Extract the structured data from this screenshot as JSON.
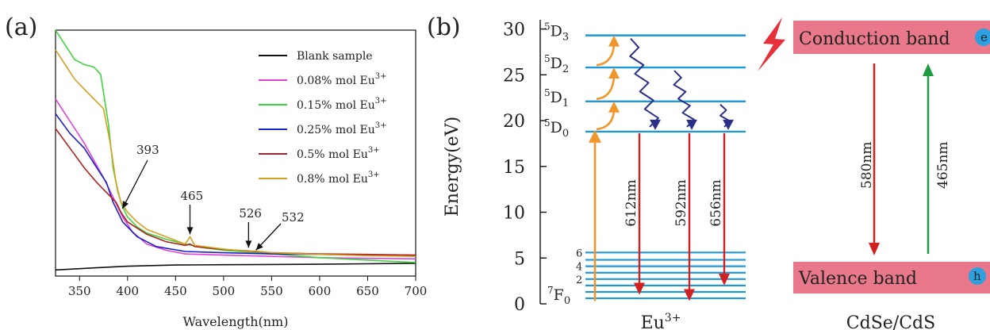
{
  "chart_data": [
    {
      "type": "line",
      "panel_label": "(a)",
      "xlabel": "Wavelength(nm)",
      "ylabel": "",
      "xlim": [
        325,
        700
      ],
      "ylim": [
        0,
        1
      ],
      "grid": false,
      "legend_position": "top-right",
      "x_ticks": [
        350,
        400,
        450,
        500,
        550,
        600,
        650,
        700
      ],
      "series": [
        {
          "name": "Blank sample",
          "color": "#111111",
          "points": [
            [
              325,
              0.025
            ],
            [
              350,
              0.03
            ],
            [
              375,
              0.035
            ],
            [
              400,
              0.04
            ],
            [
              450,
              0.045
            ],
            [
              500,
              0.046
            ],
            [
              550,
              0.047
            ],
            [
              600,
              0.048
            ],
            [
              650,
              0.05
            ],
            [
              700,
              0.052
            ]
          ]
        },
        {
          "name": "0.08% mol Eu",
          "color": "#e040e0",
          "points": [
            [
              325,
              0.72
            ],
            [
              335,
              0.66
            ],
            [
              345,
              0.6
            ],
            [
              355,
              0.54
            ],
            [
              365,
              0.47
            ],
            [
              375,
              0.4
            ],
            [
              385,
              0.32
            ],
            [
              395,
              0.24
            ],
            [
              405,
              0.18
            ],
            [
              420,
              0.13
            ],
            [
              440,
              0.105
            ],
            [
              460,
              0.09
            ],
            [
              500,
              0.085
            ],
            [
              550,
              0.08
            ],
            [
              600,
              0.075
            ],
            [
              650,
              0.072
            ],
            [
              700,
              0.07
            ]
          ]
        },
        {
          "name": "0.15% mol Eu",
          "color": "#3ed43e",
          "points": [
            [
              325,
              1.0
            ],
            [
              335,
              0.94
            ],
            [
              345,
              0.88
            ],
            [
              355,
              0.86
            ],
            [
              365,
              0.85
            ],
            [
              372,
              0.82
            ],
            [
              380,
              0.62
            ],
            [
              385,
              0.44
            ],
            [
              390,
              0.34
            ],
            [
              395,
              0.28
            ],
            [
              400,
              0.24
            ],
            [
              410,
              0.2
            ],
            [
              420,
              0.175
            ],
            [
              440,
              0.15
            ],
            [
              460,
              0.13
            ],
            [
              480,
              0.115
            ],
            [
              500,
              0.105
            ],
            [
              550,
              0.09
            ],
            [
              600,
              0.075
            ],
            [
              650,
              0.065
            ],
            [
              700,
              0.055
            ]
          ]
        },
        {
          "name": "0.25% mol Eu",
          "color": "#1a22c0",
          "points": [
            [
              325,
              0.66
            ],
            [
              340,
              0.58
            ],
            [
              355,
              0.52
            ],
            [
              368,
              0.44
            ],
            [
              378,
              0.38
            ],
            [
              385,
              0.3
            ],
            [
              395,
              0.22
            ],
            [
              410,
              0.16
            ],
            [
              430,
              0.12
            ],
            [
              460,
              0.1
            ],
            [
              500,
              0.095
            ],
            [
              550,
              0.09
            ],
            [
              600,
              0.088
            ],
            [
              650,
              0.085
            ],
            [
              700,
              0.082
            ]
          ]
        },
        {
          "name": "0.5% mol Eu",
          "color": "#b02020",
          "points": [
            [
              325,
              0.6
            ],
            [
              340,
              0.52
            ],
            [
              355,
              0.44
            ],
            [
              368,
              0.38
            ],
            [
              378,
              0.34
            ],
            [
              388,
              0.3
            ],
            [
              393,
              0.26
            ],
            [
              400,
              0.22
            ],
            [
              420,
              0.17
            ],
            [
              440,
              0.14
            ],
            [
              460,
              0.125
            ],
            [
              465,
              0.13
            ],
            [
              470,
              0.12
            ],
            [
              500,
              0.108
            ],
            [
              526,
              0.102
            ],
            [
              550,
              0.095
            ],
            [
              600,
              0.09
            ],
            [
              650,
              0.088
            ],
            [
              700,
              0.085
            ]
          ]
        },
        {
          "name": "0.8% mol Eu",
          "color": "#d4a020",
          "points": [
            [
              325,
              0.92
            ],
            [
              335,
              0.86
            ],
            [
              345,
              0.8
            ],
            [
              355,
              0.76
            ],
            [
              365,
              0.72
            ],
            [
              375,
              0.68
            ],
            [
              382,
              0.54
            ],
            [
              388,
              0.38
            ],
            [
              393,
              0.3
            ],
            [
              400,
              0.26
            ],
            [
              410,
              0.22
            ],
            [
              420,
              0.19
            ],
            [
              440,
              0.16
            ],
            [
              460,
              0.13
            ],
            [
              465,
              0.16
            ],
            [
              470,
              0.125
            ],
            [
              500,
              0.11
            ],
            [
              526,
              0.1
            ],
            [
              532,
              0.102
            ],
            [
              550,
              0.095
            ],
            [
              600,
              0.088
            ],
            [
              650,
              0.083
            ],
            [
              700,
              0.08
            ]
          ]
        }
      ],
      "annotations": [
        {
          "text": "393",
          "x": 393,
          "y": 0.3
        },
        {
          "text": "465",
          "x": 465,
          "y": 0.16
        },
        {
          "text": "526",
          "x": 526,
          "y": 0.102
        },
        {
          "text": "532",
          "x": 532,
          "y": 0.102
        }
      ]
    },
    {
      "type": "diagram",
      "panel_label": "(b)",
      "ylabel": "Energy(eV)",
      "ylim": [
        0,
        31
      ],
      "y_ticks": [
        0,
        5,
        10,
        15,
        20,
        25,
        30
      ],
      "eu_levels": [
        {
          "label": "5D3",
          "main": "5",
          "term": "D",
          "sub": "3",
          "energy": 29.3
        },
        {
          "label": "5D2",
          "main": "5",
          "term": "D",
          "sub": "2",
          "energy": 25.8
        },
        {
          "label": "5D1",
          "main": "5",
          "term": "D",
          "sub": "1",
          "energy": 22.1
        },
        {
          "label": "5D0",
          "main": "5",
          "term": "D",
          "sub": "0",
          "energy": 18.8
        }
      ],
      "ground_levels": [
        5.6,
        4.8,
        4.1,
        3.4,
        2.7,
        2.0,
        1.3,
        0.6
      ],
      "ground_labels": {
        "six": "6",
        "four": "4",
        "two": "2",
        "term_main": "7",
        "term_letter": "F",
        "term_sub": "0"
      },
      "emissions": [
        {
          "wavelength": "612nm",
          "color": "#d02020"
        },
        {
          "wavelength": "592nm",
          "color": "#d02020"
        },
        {
          "wavelength": "656nm",
          "color": "#d02020"
        }
      ],
      "host_transitions": [
        {
          "wavelength": "580nm",
          "color": "#d02020",
          "direction": "down"
        },
        {
          "wavelength": "465nm",
          "color": "#1e9a40",
          "direction": "up"
        }
      ],
      "eu_caption_main": "Eu",
      "eu_caption_sup": "3+",
      "conduction_band": "Conduction band",
      "valence_band": "Valence band",
      "electron": "e",
      "hole": "h",
      "host_caption": "CdSe/CdS",
      "band_color": "#e8788a"
    }
  ]
}
